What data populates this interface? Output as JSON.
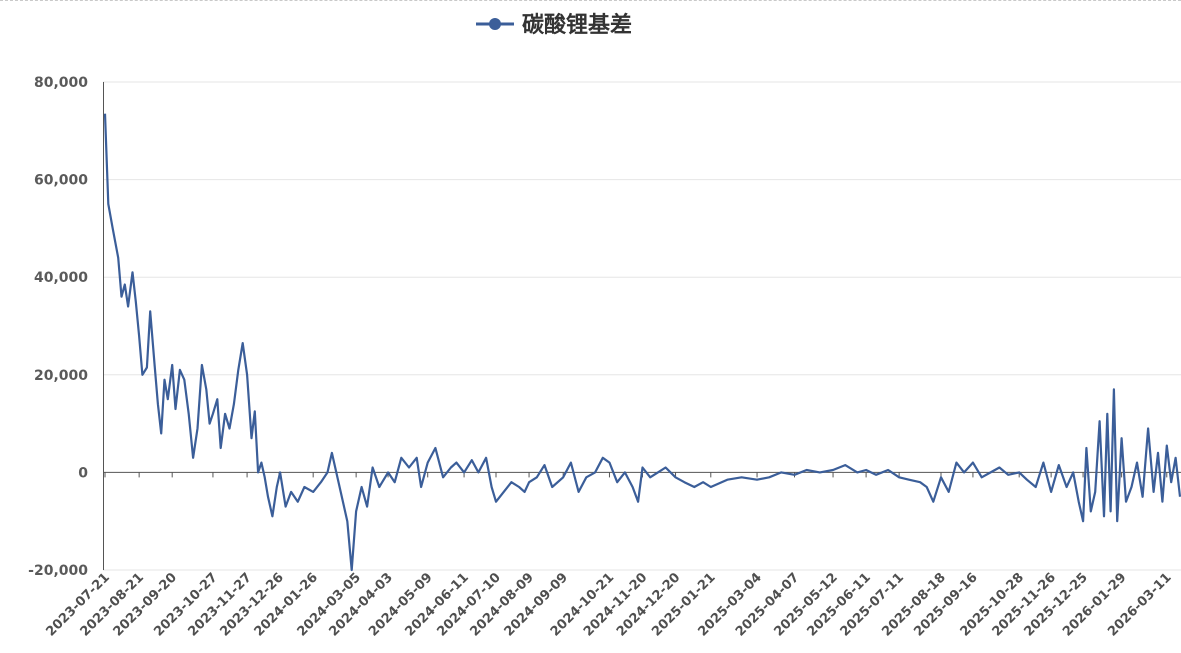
{
  "chart_data": {
    "type": "line",
    "title": "",
    "xlabel": "",
    "ylabel": "",
    "ylim": [
      -20000,
      80000
    ],
    "grid": true,
    "legend_position": "top-center",
    "y_ticks": [
      "80,000",
      "60,000",
      "40,000",
      "20,000",
      "0",
      "-20,000"
    ],
    "y_tick_values": [
      80000,
      60000,
      40000,
      20000,
      0,
      -20000
    ],
    "x_ticks": [
      "2023-07-21",
      "2023-08-21",
      "2023-09-20",
      "2023-10-27",
      "2023-11-27",
      "2023-12-26",
      "2024-01-26",
      "2024-03-05",
      "2024-04-03",
      "2024-05-09",
      "2024-06-11",
      "2024-07-10",
      "2024-08-09",
      "2024-09-09",
      "2024-10-21",
      "2024-11-20",
      "2024-12-20",
      "2025-01-21",
      "2025-03-04",
      "2025-04-07",
      "2025-05-12",
      "2025-06-11",
      "2025-07-11",
      "2025-08-18",
      "2025-09-16",
      "2025-10-28",
      "2025-11-26",
      "2025-12-25",
      "2026-01-29",
      "2026-03-11"
    ],
    "colors": {
      "line": "#3b5e99",
      "grid": "#e6e6e6",
      "axis": "#555555"
    },
    "series": [
      {
        "name": "碳酸锂基差",
        "values": [
          [
            "2023-07-21",
            73500
          ],
          [
            "2023-07-24",
            55000
          ],
          [
            "2023-07-28",
            50000
          ],
          [
            "2023-08-02",
            44000
          ],
          [
            "2023-08-05",
            36000
          ],
          [
            "2023-08-08",
            38500
          ],
          [
            "2023-08-11",
            34000
          ],
          [
            "2023-08-15",
            41000
          ],
          [
            "2023-08-18",
            35000
          ],
          [
            "2023-08-21",
            28000
          ],
          [
            "2023-08-24",
            20000
          ],
          [
            "2023-08-28",
            21500
          ],
          [
            "2023-08-31",
            33000
          ],
          [
            "2023-09-04",
            22000
          ],
          [
            "2023-09-07",
            14000
          ],
          [
            "2023-09-10",
            8000
          ],
          [
            "2023-09-13",
            19000
          ],
          [
            "2023-09-16",
            15000
          ],
          [
            "2023-09-20",
            22000
          ],
          [
            "2023-09-23",
            13000
          ],
          [
            "2023-09-27",
            21000
          ],
          [
            "2023-10-01",
            19000
          ],
          [
            "2023-10-05",
            12000
          ],
          [
            "2023-10-09",
            3000
          ],
          [
            "2023-10-13",
            9000
          ],
          [
            "2023-10-17",
            22000
          ],
          [
            "2023-10-21",
            17000
          ],
          [
            "2023-10-24",
            10000
          ],
          [
            "2023-10-27",
            12000
          ],
          [
            "2023-10-31",
            15000
          ],
          [
            "2023-11-03",
            5000
          ],
          [
            "2023-11-07",
            12000
          ],
          [
            "2023-11-11",
            9000
          ],
          [
            "2023-11-15",
            14000
          ],
          [
            "2023-11-19",
            21000
          ],
          [
            "2023-11-23",
            26500
          ],
          [
            "2023-11-27",
            20000
          ],
          [
            "2023-12-01",
            7000
          ],
          [
            "2023-12-04",
            12500
          ],
          [
            "2023-12-07",
            0
          ],
          [
            "2023-12-10",
            2000
          ],
          [
            "2023-12-13",
            -1000
          ],
          [
            "2023-12-16",
            -5000
          ],
          [
            "2023-12-20",
            -9000
          ],
          [
            "2023-12-24",
            -3000
          ],
          [
            "2023-12-27",
            0
          ],
          [
            "2024-01-01",
            -7000
          ],
          [
            "2024-01-06",
            -4000
          ],
          [
            "2024-01-12",
            -6000
          ],
          [
            "2024-01-18",
            -3000
          ],
          [
            "2024-01-26",
            -4000
          ],
          [
            "2024-02-02",
            -2000
          ],
          [
            "2024-02-08",
            0
          ],
          [
            "2024-02-12",
            4000
          ],
          [
            "2024-02-20",
            -4000
          ],
          [
            "2024-02-26",
            -10000
          ],
          [
            "2024-03-01",
            -20000
          ],
          [
            "2024-03-05",
            -8000
          ],
          [
            "2024-03-10",
            -3000
          ],
          [
            "2024-03-15",
            -7000
          ],
          [
            "2024-03-20",
            1000
          ],
          [
            "2024-03-26",
            -3000
          ],
          [
            "2024-04-03",
            0
          ],
          [
            "2024-04-09",
            -2000
          ],
          [
            "2024-04-15",
            3000
          ],
          [
            "2024-04-22",
            1000
          ],
          [
            "2024-04-29",
            3000
          ],
          [
            "2024-05-03",
            -3000
          ],
          [
            "2024-05-09",
            2000
          ],
          [
            "2024-05-16",
            5000
          ],
          [
            "2024-05-23",
            -1000
          ],
          [
            "2024-05-30",
            1000
          ],
          [
            "2024-06-04",
            2000
          ],
          [
            "2024-06-11",
            0
          ],
          [
            "2024-06-18",
            2500
          ],
          [
            "2024-06-24",
            0
          ],
          [
            "2024-07-01",
            3000
          ],
          [
            "2024-07-06",
            -3000
          ],
          [
            "2024-07-10",
            -6000
          ],
          [
            "2024-07-17",
            -4000
          ],
          [
            "2024-07-24",
            -2000
          ],
          [
            "2024-07-31",
            -3000
          ],
          [
            "2024-08-05",
            -4000
          ],
          [
            "2024-08-09",
            -2000
          ],
          [
            "2024-08-16",
            -1000
          ],
          [
            "2024-08-23",
            1500
          ],
          [
            "2024-08-30",
            -3000
          ],
          [
            "2024-09-09",
            -1000
          ],
          [
            "2024-09-16",
            2000
          ],
          [
            "2024-09-23",
            -4000
          ],
          [
            "2024-09-30",
            -1000
          ],
          [
            "2024-10-08",
            0
          ],
          [
            "2024-10-15",
            3000
          ],
          [
            "2024-10-21",
            2000
          ],
          [
            "2024-10-28",
            -2000
          ],
          [
            "2024-11-04",
            0
          ],
          [
            "2024-11-11",
            -3000
          ],
          [
            "2024-11-16",
            -6000
          ],
          [
            "2024-11-20",
            1000
          ],
          [
            "2024-11-27",
            -1000
          ],
          [
            "2024-12-04",
            0
          ],
          [
            "2024-12-11",
            1000
          ],
          [
            "2024-12-20",
            -1000
          ],
          [
            "2024-12-28",
            -2000
          ],
          [
            "2025-01-06",
            -3000
          ],
          [
            "2025-01-14",
            -2000
          ],
          [
            "2025-01-21",
            -3000
          ],
          [
            "2025-02-05",
            -1500
          ],
          [
            "2025-02-18",
            -1000
          ],
          [
            "2025-03-04",
            -1500
          ],
          [
            "2025-03-15",
            -1000
          ],
          [
            "2025-03-26",
            0
          ],
          [
            "2025-04-07",
            -500
          ],
          [
            "2025-04-18",
            500
          ],
          [
            "2025-04-30",
            0
          ],
          [
            "2025-05-12",
            500
          ],
          [
            "2025-05-23",
            1500
          ],
          [
            "2025-06-03",
            0
          ],
          [
            "2025-06-11",
            500
          ],
          [
            "2025-06-20",
            -500
          ],
          [
            "2025-07-01",
            500
          ],
          [
            "2025-07-11",
            -1000
          ],
          [
            "2025-07-20",
            -1500
          ],
          [
            "2025-07-30",
            -2000
          ],
          [
            "2025-08-05",
            -3000
          ],
          [
            "2025-08-11",
            -6000
          ],
          [
            "2025-08-18",
            -1000
          ],
          [
            "2025-08-25",
            -4000
          ],
          [
            "2025-09-01",
            2000
          ],
          [
            "2025-09-08",
            0
          ],
          [
            "2025-09-16",
            2000
          ],
          [
            "2025-09-24",
            -1000
          ],
          [
            "2025-10-02",
            0
          ],
          [
            "2025-10-10",
            1000
          ],
          [
            "2025-10-18",
            -500
          ],
          [
            "2025-10-28",
            0
          ],
          [
            "2025-11-04",
            -1500
          ],
          [
            "2025-11-12",
            -3000
          ],
          [
            "2025-11-19",
            2000
          ],
          [
            "2025-11-26",
            -4000
          ],
          [
            "2025-12-03",
            1500
          ],
          [
            "2025-12-10",
            -3000
          ],
          [
            "2025-12-16",
            0
          ],
          [
            "2025-12-21",
            -6000
          ],
          [
            "2025-12-25",
            -10000
          ],
          [
            "2025-12-28",
            5000
          ],
          [
            "2026-01-01",
            -8000
          ],
          [
            "2026-01-05",
            -4000
          ],
          [
            "2026-01-09",
            10500
          ],
          [
            "2026-01-13",
            -9000
          ],
          [
            "2026-01-16",
            12000
          ],
          [
            "2026-01-19",
            -8000
          ],
          [
            "2026-01-22",
            17000
          ],
          [
            "2026-01-25",
            -10000
          ],
          [
            "2026-01-29",
            7000
          ],
          [
            "2026-02-02",
            -6000
          ],
          [
            "2026-02-07",
            -3000
          ],
          [
            "2026-02-12",
            2000
          ],
          [
            "2026-02-17",
            -5000
          ],
          [
            "2026-02-22",
            9000
          ],
          [
            "2026-02-27",
            -4000
          ],
          [
            "2026-03-03",
            4000
          ],
          [
            "2026-03-07",
            -6000
          ],
          [
            "2026-03-11",
            5500
          ],
          [
            "2026-03-15",
            -2000
          ],
          [
            "2026-03-19",
            3000
          ],
          [
            "2026-03-23",
            -5000
          ]
        ]
      }
    ]
  }
}
